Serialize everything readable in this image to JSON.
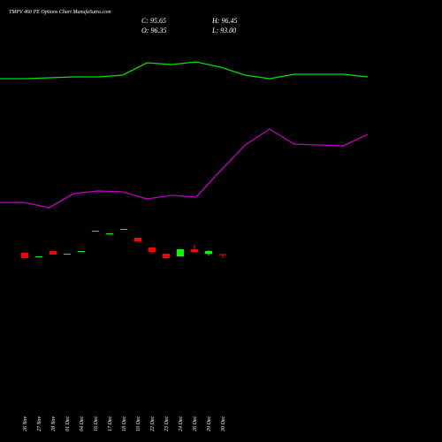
{
  "chart_data": [
    {
      "type": "candlestick",
      "title": "TMPV 460 PE Options Chart MunafaSutra.com",
      "header": [
        "C: 95.65",
        "H: 96.45",
        "O: 96.35",
        "L: 93.00"
      ],
      "categories": [
        "26 Nov",
        "27 Nov",
        "28 Nov",
        "01 Dec",
        "04 Dec",
        "16 Dec",
        "17 Dec",
        "18 Dec",
        "19 Dec",
        "22 Dec",
        "23 Dec",
        "24 Dec",
        "26 Dec",
        "29 Dec",
        "30 Dec"
      ],
      "open": [
        97.5,
        93.75,
        99.0,
        96.0,
        98.25,
        115.5,
        113.25,
        117.0,
        110.25,
        102.0,
        96.75,
        94.5,
        100.5,
        96.75,
        96.35
      ],
      "high": [
        97.5,
        94.5,
        99.0,
        96.75,
        99.0,
        116.25,
        114.0,
        117.75,
        110.25,
        102.0,
        96.75,
        100.5,
        104.25,
        99.75,
        96.45
      ],
      "low": [
        93.0,
        93.75,
        96.0,
        96.0,
        98.25,
        115.5,
        113.25,
        117.0,
        107.25,
        96.75,
        92.25,
        94.5,
        98.25,
        95.25,
        93.0
      ],
      "close": [
        93.0,
        94.5,
        96.0,
        96.75,
        99.0,
        116.25,
        114.0,
        117.75,
        107.25,
        98.25,
        93.0,
        100.5,
        98.25,
        99.0,
        95.65
      ],
      "up_color": "#00ff00",
      "down_color": "#ff0000",
      "ylim": [
        -63,
        312
      ]
    },
    {
      "type": "line",
      "series": [
        {
          "color": "#00e000",
          "values": [
            411,
            411,
            412,
            413,
            413,
            415,
            429,
            427,
            430,
            424,
            415,
            411,
            416,
            416,
            416,
            413
          ]
        },
        {
          "color": "#c000c0",
          "values": [
            271,
            271,
            265,
            281,
            284,
            283,
            275,
            279,
            277,
            307,
            336,
            354,
            337,
            336,
            335,
            348
          ]
        }
      ],
      "ylim": [
        0,
        500
      ]
    }
  ]
}
